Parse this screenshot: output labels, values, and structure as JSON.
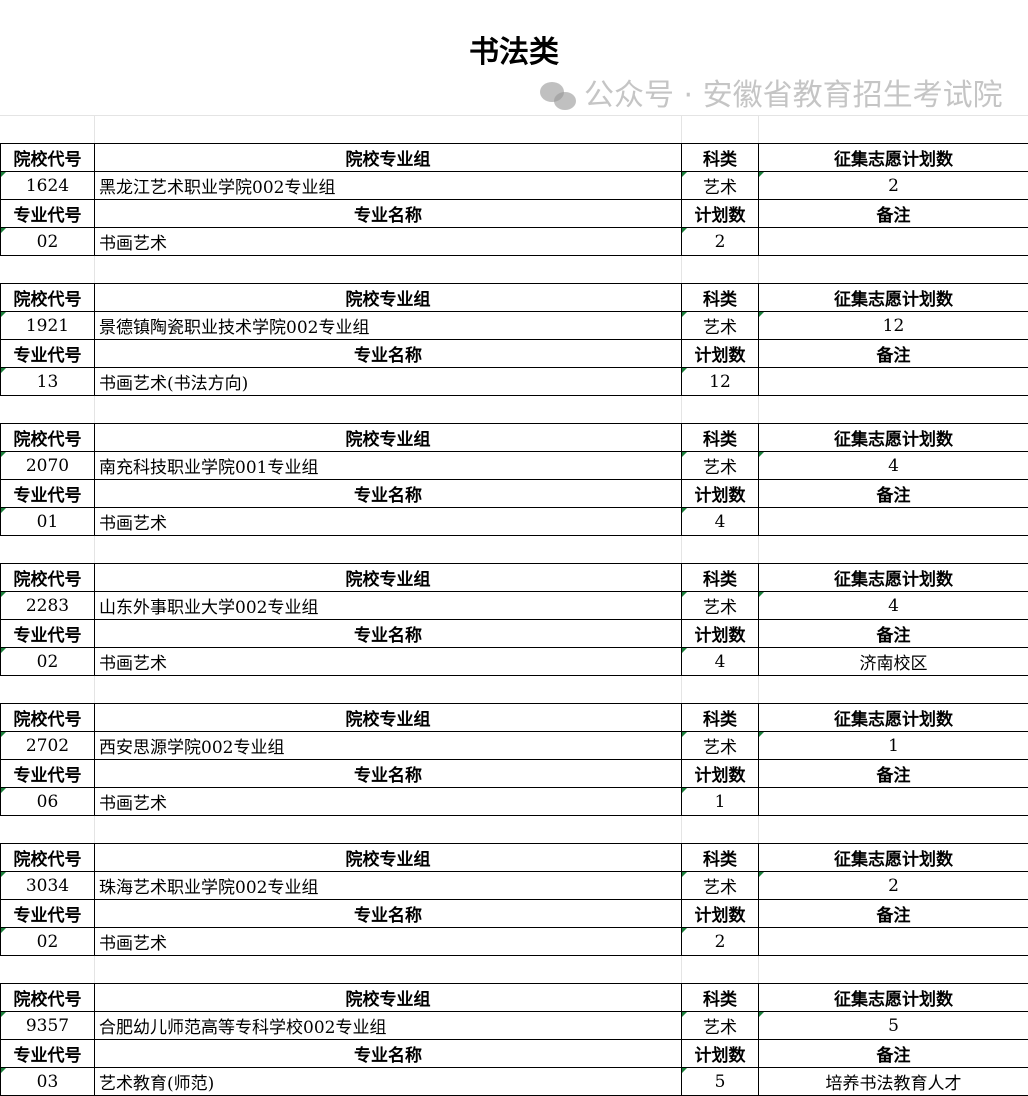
{
  "title": "书法类",
  "headers": {
    "school_code": "院校代号",
    "group": "院校专业组",
    "category": "科类",
    "plan_total": "征集志愿计划数",
    "major_code": "专业代号",
    "major_name": "专业名称",
    "plan": "计划数",
    "note": "备注"
  },
  "blocks": [
    {
      "school_code": "1624",
      "group": "黑龙江艺术职业学院002专业组",
      "category": "艺术",
      "plan_total": "2",
      "major_code": "02",
      "major_name": "书画艺术",
      "plan": "2",
      "note": ""
    },
    {
      "school_code": "1921",
      "group": "景德镇陶瓷职业技术学院002专业组",
      "category": "艺术",
      "plan_total": "12",
      "major_code": "13",
      "major_name": "书画艺术(书法方向)",
      "plan": "12",
      "note": ""
    },
    {
      "school_code": "2070",
      "group": "南充科技职业学院001专业组",
      "category": "艺术",
      "plan_total": "4",
      "major_code": "01",
      "major_name": "书画艺术",
      "plan": "4",
      "note": ""
    },
    {
      "school_code": "2283",
      "group": "山东外事职业大学002专业组",
      "category": "艺术",
      "plan_total": "4",
      "major_code": "02",
      "major_name": "书画艺术",
      "plan": "4",
      "note": "济南校区"
    },
    {
      "school_code": "2702",
      "group": "西安思源学院002专业组",
      "category": "艺术",
      "plan_total": "1",
      "major_code": "06",
      "major_name": "书画艺术",
      "plan": "1",
      "note": ""
    },
    {
      "school_code": "3034",
      "group": "珠海艺术职业学院002专业组",
      "category": "艺术",
      "plan_total": "2",
      "major_code": "02",
      "major_name": "书画艺术",
      "plan": "2",
      "note": ""
    },
    {
      "school_code": "9357",
      "group": "合肥幼儿师范高等专科学校002专业组",
      "category": "艺术",
      "plan_total": "5",
      "major_code": "03",
      "major_name": "艺术教育(师范)",
      "plan": "5",
      "note": "培养书法教育人才"
    }
  ],
  "watermark": "公众号 · 安徽省教育招生考试院",
  "watermark_icon": "wechat-icon"
}
